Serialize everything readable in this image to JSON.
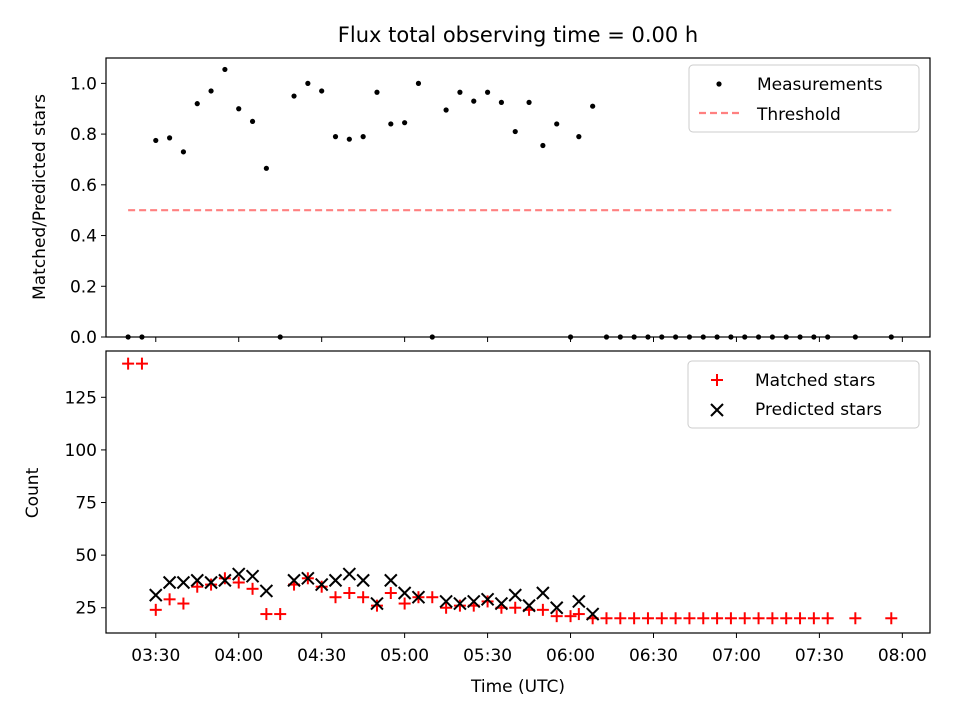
{
  "title": "Flux total observing time = 0.00 h",
  "chart_data": [
    {
      "type": "scatter",
      "panel": "top",
      "ylabel": "Matched/Predicted stars",
      "ylim": [
        0,
        1.1
      ],
      "yticks": [
        "0.0",
        "0.2",
        "0.4",
        "0.6",
        "0.8",
        "1.0"
      ],
      "xlim_minutes_utc": [
        192,
        490
      ],
      "legend_position": "top-right",
      "series": [
        {
          "name": "Measurements",
          "marker": "dot",
          "color": "#000000",
          "x": [
            "03:20",
            "03:25",
            "03:30",
            "03:35",
            "03:40",
            "03:45",
            "03:50",
            "03:55",
            "04:00",
            "04:05",
            "04:10",
            "04:15",
            "04:20",
            "04:25",
            "04:30",
            "04:35",
            "04:40",
            "04:45",
            "04:50",
            "04:55",
            "05:00",
            "05:05",
            "05:10",
            "05:15",
            "05:20",
            "05:25",
            "05:30",
            "05:35",
            "05:40",
            "05:45",
            "05:50",
            "05:55",
            "06:00",
            "06:03",
            "06:08",
            "06:13",
            "06:18",
            "06:23",
            "06:28",
            "06:33",
            "06:38",
            "06:43",
            "06:48",
            "06:53",
            "06:58",
            "07:03",
            "07:08",
            "07:13",
            "07:18",
            "07:23",
            "07:28",
            "07:33",
            "07:43",
            "07:56"
          ],
          "y": [
            0.0,
            0.0,
            0.775,
            0.785,
            0.73,
            0.92,
            0.97,
            1.055,
            0.9,
            0.85,
            0.665,
            0.0,
            0.95,
            1.0,
            0.97,
            0.79,
            0.78,
            0.79,
            0.965,
            0.84,
            0.845,
            1.0,
            0.0,
            0.895,
            0.965,
            0.93,
            0.965,
            0.925,
            0.81,
            0.925,
            0.755,
            0.84,
            0.0,
            0.79,
            0.91,
            0.0,
            0.0,
            0.0,
            0.0,
            0.0,
            0.0,
            0.0,
            0.0,
            0.0,
            0.0,
            0.0,
            0.0,
            0.0,
            0.0,
            0.0,
            0.0,
            0.0,
            0.0,
            0.0
          ]
        },
        {
          "name": "Threshold",
          "marker": "dashed-line",
          "color": "#ff8080",
          "x": [
            "03:20",
            "07:56"
          ],
          "y": [
            0.5,
            0.5
          ]
        }
      ]
    },
    {
      "type": "scatter",
      "panel": "bottom",
      "xlabel": "Time (UTC)",
      "ylabel": "Count",
      "ylim": [
        13,
        147
      ],
      "yticks": [
        "25",
        "50",
        "75",
        "100",
        "125"
      ],
      "xticks": [
        "03:30",
        "04:00",
        "04:30",
        "05:00",
        "05:30",
        "06:00",
        "06:30",
        "07:00",
        "07:30",
        "08:00"
      ],
      "xlim_minutes_utc": [
        192,
        490
      ],
      "legend_position": "top-right",
      "series": [
        {
          "name": "Matched stars",
          "marker": "plus",
          "color": "#ff0000",
          "x": [
            "03:20",
            "03:25",
            "03:30",
            "03:35",
            "03:40",
            "03:45",
            "03:50",
            "03:55",
            "04:00",
            "04:05",
            "04:10",
            "04:15",
            "04:20",
            "04:25",
            "04:30",
            "04:35",
            "04:40",
            "04:45",
            "04:50",
            "04:55",
            "05:00",
            "05:05",
            "05:10",
            "05:15",
            "05:20",
            "05:25",
            "05:30",
            "05:35",
            "05:40",
            "05:45",
            "05:50",
            "05:55",
            "06:00",
            "06:03",
            "06:08",
            "06:13",
            "06:18",
            "06:23",
            "06:28",
            "06:33",
            "06:38",
            "06:43",
            "06:48",
            "06:53",
            "06:58",
            "07:03",
            "07:08",
            "07:13",
            "07:18",
            "07:23",
            "07:28",
            "07:33",
            "07:43",
            "07:56"
          ],
          "y": [
            141,
            141,
            24,
            29,
            27,
            35,
            36,
            39,
            37,
            34,
            22,
            22,
            36,
            39,
            35,
            30,
            32,
            30,
            26,
            32,
            27,
            30,
            30,
            25,
            26,
            26,
            28,
            25,
            25,
            24,
            24,
            21,
            21,
            22,
            20,
            20,
            20,
            20,
            20,
            20,
            20,
            20,
            20,
            20,
            20,
            20,
            20,
            20,
            20,
            20,
            20,
            20,
            20,
            20
          ]
        },
        {
          "name": "Predicted stars",
          "marker": "x",
          "color": "#000000",
          "x": [
            "03:30",
            "03:35",
            "03:40",
            "03:45",
            "03:50",
            "03:55",
            "04:00",
            "04:05",
            "04:10",
            "04:20",
            "04:25",
            "04:30",
            "04:35",
            "04:40",
            "04:45",
            "04:50",
            "04:55",
            "05:00",
            "05:05",
            "05:15",
            "05:20",
            "05:25",
            "05:30",
            "05:35",
            "05:40",
            "05:45",
            "05:50",
            "05:55",
            "06:03",
            "06:08"
          ],
          "y": [
            31,
            37,
            37,
            38,
            37,
            38,
            41,
            40,
            33,
            38,
            39,
            36,
            38,
            41,
            38,
            27,
            38,
            32,
            30,
            28,
            27,
            28,
            29,
            27,
            31,
            26,
            32,
            25,
            28,
            22
          ]
        }
      ]
    }
  ]
}
